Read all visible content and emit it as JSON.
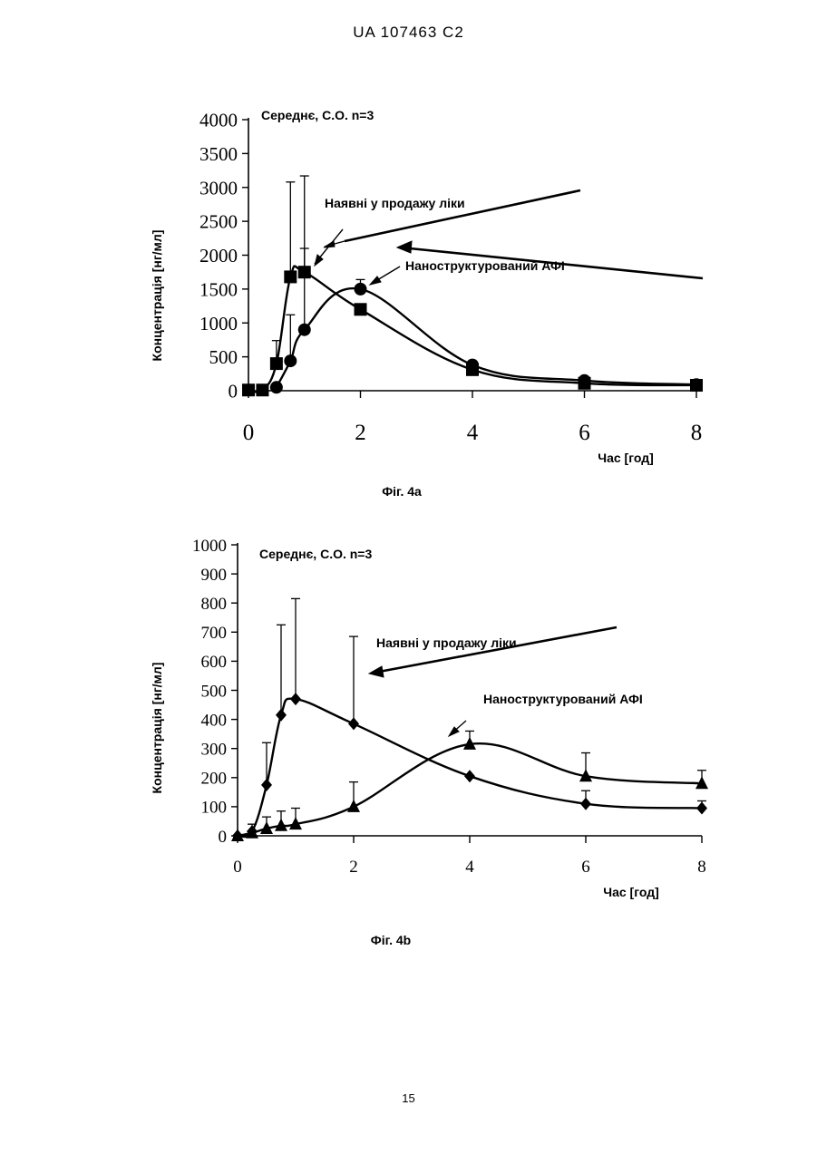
{
  "page": {
    "header": "UA   107463   C2",
    "page_number": "15"
  },
  "chart_data": [
    {
      "type": "line",
      "caption": "Фіг. 4а",
      "annotation": "Середнє, С.О. n=3",
      "xlabel": "Час [год]",
      "ylabel": "Концентрація [нг/мл]",
      "xlim": [
        0,
        8
      ],
      "ylim": [
        0,
        4000
      ],
      "xticks": [
        "0",
        "2",
        "4",
        "6",
        "8"
      ],
      "yticks": [
        "0",
        "500",
        "1000",
        "1500",
        "2000",
        "2500",
        "3000",
        "3500",
        "4000"
      ],
      "series": [
        {
          "name": "Наявні у продажу ліки",
          "marker": "square",
          "x": [
            0,
            0.25,
            0.5,
            0.75,
            1,
            2,
            4,
            6,
            8
          ],
          "y": [
            10,
            10,
            400,
            1680,
            1750,
            1200,
            310,
            110,
            80
          ],
          "err": [
            0,
            0,
            340,
            1400,
            1420,
            0,
            0,
            0,
            0
          ]
        },
        {
          "name": "Наноструктурований АФІ",
          "marker": "circle",
          "x": [
            0.5,
            0.75,
            1,
            2,
            4,
            6,
            8
          ],
          "y": [
            50,
            440,
            900,
            1500,
            380,
            150,
            90
          ],
          "err": [
            0,
            680,
            1200,
            140,
            0,
            0,
            0
          ]
        }
      ]
    },
    {
      "type": "line",
      "caption": "Фіг. 4b",
      "annotation": "Середнє, С.О. n=3",
      "xlabel": "Час [год]",
      "ylabel": "Концентрація [нг/мл]",
      "xlim": [
        0,
        8
      ],
      "ylim": [
        0,
        1000
      ],
      "xticks": [
        "0",
        "2",
        "4",
        "6",
        "8"
      ],
      "yticks": [
        "0",
        "100",
        "200",
        "300",
        "400",
        "500",
        "600",
        "700",
        "800",
        "900",
        "1000"
      ],
      "series": [
        {
          "name": "Наявні у продажу ліки",
          "marker": "diamond",
          "x": [
            0,
            0.25,
            0.5,
            0.75,
            1,
            2,
            4,
            6,
            8
          ],
          "y": [
            0,
            15,
            175,
            415,
            470,
            385,
            205,
            110,
            95
          ],
          "err": [
            0,
            0,
            145,
            310,
            345,
            300,
            0,
            45,
            25
          ]
        },
        {
          "name": "Наноструктурований АФІ",
          "marker": "triangle",
          "x": [
            0,
            0.25,
            0.5,
            0.75,
            1,
            2,
            4,
            6,
            8
          ],
          "y": [
            0,
            10,
            25,
            35,
            40,
            100,
            315,
            205,
            180
          ],
          "err": [
            0,
            30,
            40,
            50,
            55,
            85,
            45,
            80,
            45
          ]
        }
      ]
    }
  ]
}
